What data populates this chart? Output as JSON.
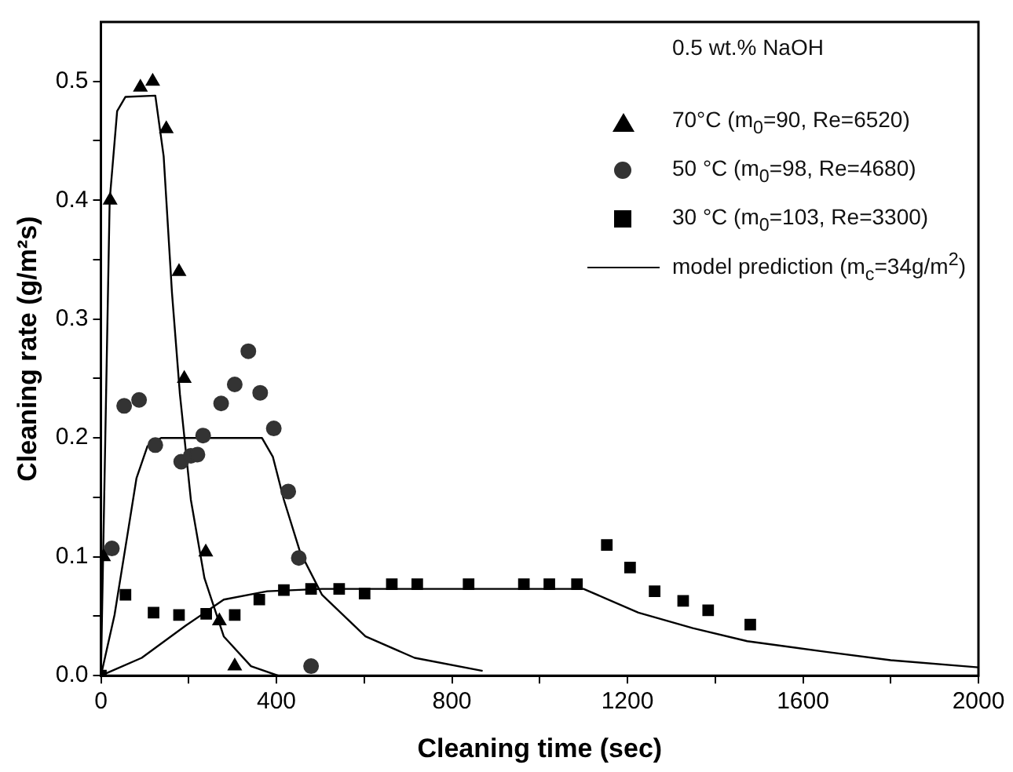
{
  "chart_data": {
    "type": "scatter",
    "xlabel": "Cleaning time (sec)",
    "ylabel": "Cleaning rate (g/m²s)",
    "legend_title": "0.5 wt.% NaOH",
    "legend": "top right",
    "grid": false,
    "xlim": [
      0,
      2000
    ],
    "ylim": [
      0,
      0.55
    ],
    "xticks": [
      0,
      {
        "value": 200,
        "label": null
      },
      400,
      {
        "value": 600,
        "label": null
      },
      800,
      {
        "value": 1000,
        "label": null
      },
      1200,
      {
        "value": 1400,
        "label": null
      },
      1600,
      {
        "value": 1800,
        "label": null
      },
      2000
    ],
    "yticks": [
      {
        "value": 0,
        "label": "0.0"
      },
      {
        "value": 0.05,
        "label": null
      },
      {
        "value": 0.1,
        "label": "0.1"
      },
      {
        "value": 0.15,
        "label": null
      },
      {
        "value": 0.2,
        "label": "0.2"
      },
      {
        "value": 0.25,
        "label": null
      },
      {
        "value": 0.3,
        "label": "0.3"
      },
      {
        "value": 0.35,
        "label": null
      },
      {
        "value": 0.4,
        "label": "0.4"
      },
      {
        "value": 0.45,
        "label": null
      },
      {
        "value": 0.5,
        "label": "0.5"
      }
    ],
    "series": [
      {
        "name": "70°C (m$_{0}$=90, Re=6520)",
        "marker": "triangle",
        "color": "#000000",
        "x": [
          6,
          21,
          90,
          118,
          149,
          178,
          190,
          239,
          270,
          305
        ],
        "values": [
          0.1,
          0.4,
          0.495,
          0.5,
          0.46,
          0.34,
          0.25,
          0.104,
          0.046,
          0.008
        ]
      },
      {
        "name": "50 °C (m$_{0}$=98, Re=4680)",
        "marker": "circle",
        "color": "#333333",
        "x": [
          25,
          53,
          87,
          124,
          183,
          205,
          220,
          233,
          274,
          305,
          336,
          363,
          394,
          427,
          451,
          479
        ],
        "values": [
          0.107,
          0.227,
          0.232,
          0.194,
          0.18,
          0.185,
          0.186,
          0.202,
          0.229,
          0.245,
          0.273,
          0.238,
          0.208,
          0.155,
          0.099,
          0.008
        ]
      },
      {
        "name": "30  °C (m$_{0}$=103, Re=3300)",
        "marker": "square",
        "color": "#000000",
        "x": [
          0,
          56,
          120,
          178,
          240,
          305,
          361,
          417,
          479,
          543,
          601,
          663,
          721,
          838,
          964,
          1022,
          1085,
          1153,
          1206,
          1262,
          1327,
          1384,
          1480
        ],
        "values": [
          0,
          0.068,
          0.053,
          0.051,
          0.052,
          0.051,
          0.064,
          0.072,
          0.073,
          0.073,
          0.069,
          0.077,
          0.077,
          0.077,
          0.077,
          0.077,
          0.077,
          0.11,
          0.091,
          0.071,
          0.063,
          0.055,
          0.043
        ]
      },
      {
        "name": "model prediction (m$_{c}$=34g/m$^{2}$)",
        "type": "line",
        "marker": "none",
        "color": "#000000",
        "x": [
          0,
          10,
          20,
          37,
          56,
          124,
          143,
          162,
          180,
          205,
          236,
          280,
          342,
          404
        ],
        "values": [
          0,
          0.2,
          0.4,
          0.475,
          0.487,
          0.488,
          0.437,
          0.322,
          0.237,
          0.148,
          0.082,
          0.033,
          0.008,
          0
        ]
      },
      {
        "type": "line",
        "marker": "none",
        "color": "#000000",
        "x": [
          0,
          31,
          62,
          81,
          106,
          137,
          367,
          392,
          417,
          454,
          504,
          603,
          715,
          870
        ],
        "values": [
          0,
          0.051,
          0.122,
          0.166,
          0.193,
          0.2,
          0.2,
          0.184,
          0.148,
          0.104,
          0.068,
          0.033,
          0.015,
          0.004
        ]
      },
      {
        "type": "line",
        "marker": "none",
        "color": "#000000",
        "x": [
          0,
          93,
          193,
          280,
          379,
          504,
          1100,
          1225,
          1349,
          1473,
          1653,
          1800,
          2000
        ],
        "values": [
          0,
          0.015,
          0.042,
          0.064,
          0.071,
          0.073,
          0.073,
          0.053,
          0.04,
          0.029,
          0.02,
          0.013,
          0.007
        ]
      }
    ]
  }
}
